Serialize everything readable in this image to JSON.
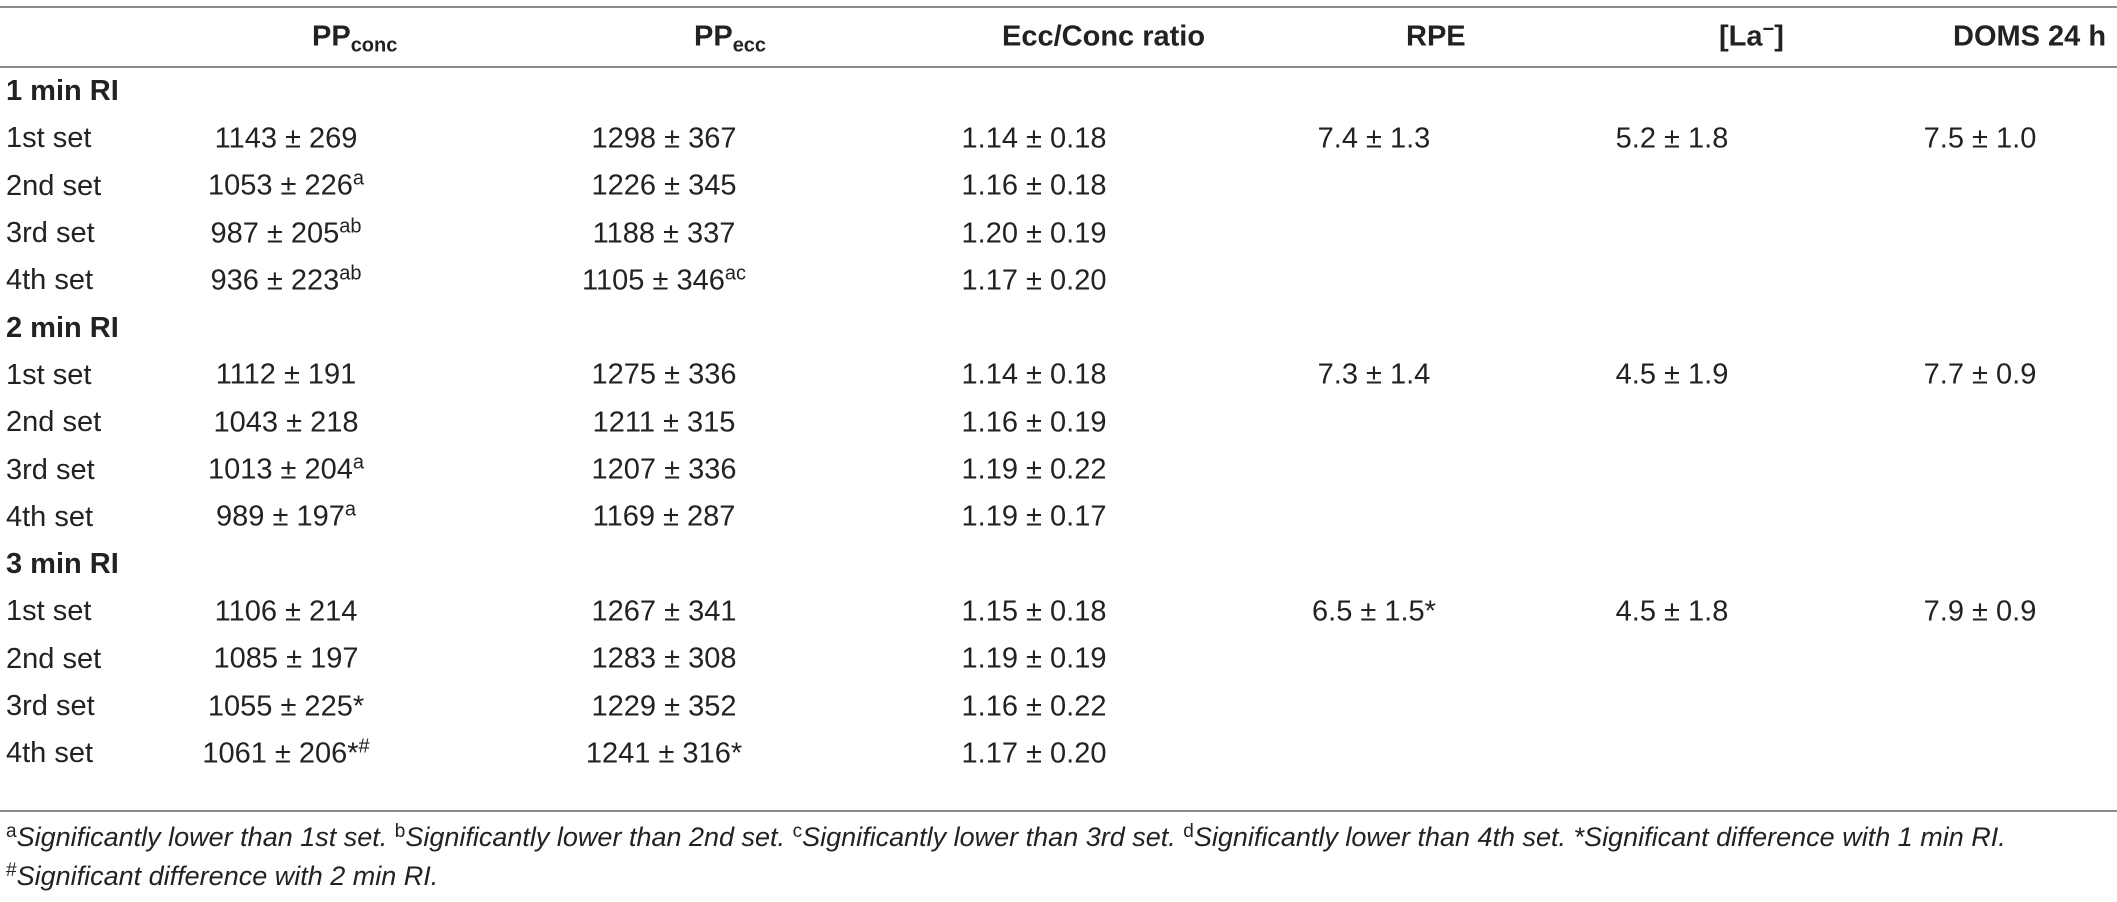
{
  "header": {
    "col0": "",
    "col1": {
      "base": "PP",
      "sub": "conc"
    },
    "col2": {
      "base": "PP",
      "sub": "ecc"
    },
    "col3": "Ecc/Conc ratio",
    "col4": "RPE",
    "col5": {
      "base": "[La",
      "sup": "−",
      "end": "]"
    },
    "col6": "DOMS 24 h"
  },
  "groups": [
    {
      "label": "1 min RI",
      "rows": [
        {
          "set": "1st set",
          "conc": "1143 ± 269",
          "conc_sup": "",
          "ecc": "1298 ± 367",
          "ecc_sup": "",
          "ratio": "1.14 ± 0.18",
          "rpe": "7.4 ± 1.3",
          "la": "5.2 ± 1.8",
          "doms": "7.5 ± 1.0"
        },
        {
          "set": "2nd set",
          "conc": "1053 ± 226",
          "conc_sup": "a",
          "ecc": "1226 ± 345",
          "ecc_sup": "",
          "ratio": "1.16 ± 0.18",
          "rpe": "",
          "la": "",
          "doms": ""
        },
        {
          "set": "3rd set",
          "conc": "987 ± 205",
          "conc_sup": "ab",
          "ecc": "1188 ± 337",
          "ecc_sup": "",
          "ratio": "1.20 ± 0.19",
          "rpe": "",
          "la": "",
          "doms": ""
        },
        {
          "set": "4th set",
          "conc": "936 ± 223",
          "conc_sup": "ab",
          "ecc": "1105 ± 346",
          "ecc_sup": "ac",
          "ratio": "1.17 ± 0.20",
          "rpe": "",
          "la": "",
          "doms": ""
        }
      ]
    },
    {
      "label": "2 min RI",
      "rows": [
        {
          "set": "1st set",
          "conc": "1112 ± 191",
          "conc_sup": "",
          "ecc": "1275 ± 336",
          "ecc_sup": "",
          "ratio": "1.14 ± 0.18",
          "rpe": "7.3 ± 1.4",
          "la": "4.5 ± 1.9",
          "doms": "7.7 ± 0.9"
        },
        {
          "set": "2nd set",
          "conc": "1043 ± 218",
          "conc_sup": "",
          "ecc": "1211 ± 315",
          "ecc_sup": "",
          "ratio": "1.16 ± 0.19",
          "rpe": "",
          "la": "",
          "doms": ""
        },
        {
          "set": "3rd set",
          "conc": "1013 ± 204",
          "conc_sup": "a",
          "ecc": "1207 ± 336",
          "ecc_sup": "",
          "ratio": "1.19 ± 0.22",
          "rpe": "",
          "la": "",
          "doms": ""
        },
        {
          "set": "4th set",
          "conc": "989 ± 197",
          "conc_sup": "a",
          "ecc": "1169 ± 287",
          "ecc_sup": "",
          "ratio": "1.19 ± 0.17",
          "rpe": "",
          "la": "",
          "doms": ""
        }
      ]
    },
    {
      "label": "3 min RI",
      "rows": [
        {
          "set": "1st set",
          "conc": "1106 ± 214",
          "conc_sup": "",
          "ecc": "1267 ± 341",
          "ecc_sup": "",
          "ratio": "1.15 ± 0.18",
          "rpe": "6.5 ± 1.5*",
          "la": "4.5 ± 1.8",
          "doms": "7.9 ± 0.9"
        },
        {
          "set": "2nd set",
          "conc": "1085 ± 197",
          "conc_sup": "",
          "ecc": "1283 ± 308",
          "ecc_sup": "",
          "ratio": "1.19 ± 0.19",
          "rpe": "",
          "la": "",
          "doms": ""
        },
        {
          "set": "3rd set",
          "conc": "1055 ± 225*",
          "conc_sup": "",
          "ecc": "1229 ± 352",
          "ecc_sup": "",
          "ratio": "1.16 ± 0.22",
          "rpe": "",
          "la": "",
          "doms": ""
        },
        {
          "set": "4th set",
          "conc": "1061 ± 206*",
          "conc_sup": "#",
          "ecc": "1241 ± 316*",
          "ecc_sup": "",
          "ratio": "1.17 ± 0.20",
          "rpe": "",
          "la": "",
          "doms": ""
        }
      ]
    }
  ],
  "footnotes": {
    "line1": [
      {
        "mark": "a",
        "text": "Significantly lower than 1st set. "
      },
      {
        "mark": "b",
        "text": "Significantly lower than 2nd set. "
      },
      {
        "mark": "c",
        "text": "Significantly lower than 3rd set. "
      },
      {
        "mark": "d",
        "text": "Significantly lower than 4th set. "
      },
      {
        "mark": "",
        "text": "*Significant difference with 1 min RI."
      }
    ],
    "line2": [
      {
        "mark": "#",
        "text": "Significant difference with 2 min RI."
      }
    ]
  }
}
